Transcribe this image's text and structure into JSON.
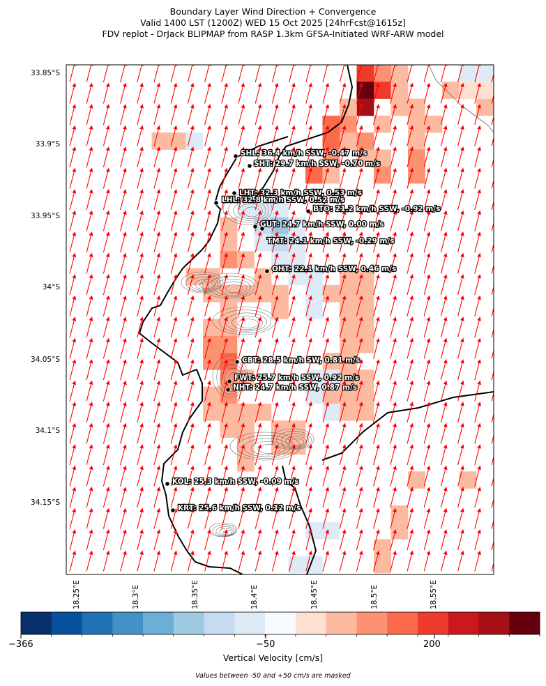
{
  "title": {
    "line1": "Boundary Layer Wind Direction + Convergence",
    "line2": "Valid 1400 LST (1200Z) WED 15 Oct 2025 [24hrFcst@1615z]",
    "line3": "FDV replot - DrJack BLIPMAP from RASP 1.3km GFSA-Initiated WRF-ARW model"
  },
  "axes": {
    "lat_ticks": [
      "33.85°S",
      "33.9°S",
      "33.95°S",
      "34°S",
      "34.05°S",
      "34.1°S",
      "34.15°S"
    ],
    "lon_ticks": [
      "18.25°E",
      "18.3°E",
      "18.35°E",
      "18.4°E",
      "18.45°E",
      "18.5°E",
      "18.55°E"
    ]
  },
  "stations": [
    {
      "label": "SHL: 36.4 km/h SSW, -0.47 m/s"
    },
    {
      "label": "SHT: 29.7 km/h SSW, -0.70 m/s"
    },
    {
      "label": "LHT: 32.3 km/h SSW, 0.53 m/s"
    },
    {
      "label": "LHL: 32.8 km/h SSW, 0.52 m/s"
    },
    {
      "label": "BTO: 21.2 km/h SSW, -0.92 m/s"
    },
    {
      "label": "GUT: 24.7 km/h SSW, 0.00 m/s"
    },
    {
      "label": "TMT: 24.1 km/h SSW, -0.29 m/s"
    },
    {
      "label": "OHT: 22.1 km/h SSW, 0.46 m/s"
    },
    {
      "label": "CBT: 28.5 km/h SW, 0.81 m/s"
    },
    {
      "label": "FWT: 25.7 km/h SSW, 0.92 m/s"
    },
    {
      "label": "NHT: 24.7 km/h SSW, 0.87 m/s"
    },
    {
      "label": "KOL: 25.3 km/h SSW, -0.09 m/s"
    },
    {
      "label": "KRT: 25.6 km/h SSW, 0.12 m/s"
    }
  ],
  "colorbar": {
    "title": "Vertical Velocity [cm/s]",
    "tick_labels": [
      "−366",
      "−50",
      "200"
    ],
    "colors": [
      "#08306b",
      "#08519c",
      "#2171b5",
      "#4292c6",
      "#6baed6",
      "#9ecae1",
      "#c6dbef",
      "#deebf7",
      "#f7fbff",
      "#fee0d2",
      "#fcbba1",
      "#fc9272",
      "#fb6a4a",
      "#ef3b2c",
      "#cb181d",
      "#a50f15",
      "#67000d"
    ],
    "mask_note": "Values between -50 and +50 cm/s are masked"
  },
  "wind_arrow_color": "#ff0000",
  "coastline_color": "#000000"
}
